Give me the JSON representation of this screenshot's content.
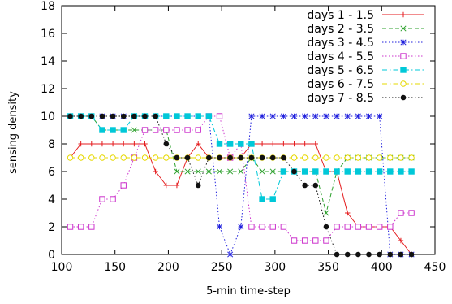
{
  "chart_data": {
    "type": "line",
    "xlabel": "5-min time-step",
    "ylabel": "sensing density",
    "xlim": [
      100,
      450
    ],
    "ylim": [
      0,
      18
    ],
    "xticks": [
      100,
      150,
      200,
      250,
      300,
      350,
      400,
      450
    ],
    "yticks": [
      0,
      2,
      4,
      6,
      8,
      10,
      12,
      14,
      16,
      18
    ],
    "grid": false,
    "legend_position": "top-right",
    "series": [
      {
        "name": "days 1 - 1.5",
        "color": "#e41a1c",
        "dash": "solid",
        "marker": "plus",
        "x": [
          108,
          118,
          128,
          138,
          148,
          158,
          168,
          178,
          188,
          198,
          208,
          218,
          228,
          238,
          248,
          258,
          268,
          278,
          288,
          298,
          308,
          318,
          328,
          338,
          348,
          358,
          368,
          378,
          388,
          398,
          408,
          418,
          428
        ],
        "y": [
          7,
          8,
          8,
          8,
          8,
          8,
          8,
          8,
          6,
          5,
          5,
          7,
          8,
          7,
          7,
          7,
          7,
          8,
          8,
          8,
          8,
          8,
          8,
          8,
          6,
          6,
          3,
          2,
          2,
          2,
          2,
          1,
          0
        ]
      },
      {
        "name": "days 2 - 3.5",
        "color": "#2ca02c",
        "dash": "dashed",
        "marker": "x",
        "x": [
          108,
          118,
          128,
          138,
          148,
          158,
          168,
          178,
          188,
          198,
          208,
          218,
          228,
          238,
          248,
          258,
          268,
          278,
          288,
          298,
          308,
          318,
          328,
          338,
          348,
          358,
          368,
          378,
          388,
          398,
          408,
          418,
          428
        ],
        "y": [
          10,
          10,
          10,
          9,
          9,
          9,
          9,
          9,
          9,
          9,
          6,
          6,
          6,
          6,
          6,
          6,
          6,
          7,
          6,
          6,
          6,
          6,
          6,
          6,
          3,
          6,
          7,
          7,
          7,
          7,
          7,
          7,
          7
        ]
      },
      {
        "name": "days 3 - 4.5",
        "color": "#1f1fdd",
        "dash": "dotted",
        "marker": "star",
        "x": [
          108,
          118,
          128,
          138,
          148,
          158,
          168,
          178,
          188,
          198,
          208,
          218,
          228,
          238,
          248,
          258,
          268,
          278,
          288,
          298,
          308,
          318,
          328,
          338,
          348,
          358,
          368,
          378,
          388,
          398,
          408,
          418,
          428
        ],
        "y": [
          10,
          10,
          10,
          10,
          10,
          10,
          10,
          10,
          10,
          10,
          10,
          10,
          10,
          10,
          2,
          0,
          2,
          10,
          10,
          10,
          10,
          10,
          10,
          10,
          10,
          10,
          10,
          10,
          10,
          10,
          0,
          0,
          0
        ]
      },
      {
        "name": "days 4 - 5.5",
        "color": "#cc33cc",
        "dash": "dotted",
        "marker": "open-square",
        "x": [
          108,
          118,
          128,
          138,
          148,
          158,
          168,
          178,
          188,
          198,
          208,
          218,
          228,
          238,
          248,
          258,
          268,
          278,
          288,
          298,
          308,
          318,
          328,
          338,
          348,
          358,
          368,
          378,
          388,
          398,
          408,
          418,
          428
        ],
        "y": [
          2,
          2,
          2,
          4,
          4,
          5,
          7,
          9,
          9,
          9,
          9,
          9,
          9,
          10,
          10,
          7,
          8,
          2,
          2,
          2,
          2,
          1,
          1,
          1,
          1,
          2,
          2,
          2,
          2,
          2,
          2,
          3,
          3
        ]
      },
      {
        "name": "days 5 - 6.5",
        "color": "#00c8d8",
        "dash": "dash-dot",
        "marker": "filled-square",
        "x": [
          108,
          118,
          128,
          138,
          148,
          158,
          168,
          178,
          188,
          198,
          208,
          218,
          228,
          238,
          248,
          258,
          268,
          278,
          288,
          298,
          308,
          318,
          328,
          338,
          348,
          358,
          368,
          378,
          388,
          398,
          408,
          418,
          428
        ],
        "y": [
          10,
          10,
          10,
          9,
          9,
          9,
          10,
          10,
          10,
          10,
          10,
          10,
          10,
          10,
          8,
          8,
          8,
          8,
          4,
          4,
          6,
          6,
          6,
          6,
          6,
          6,
          6,
          6,
          6,
          6,
          6,
          6,
          6
        ]
      },
      {
        "name": "days 6 - 7.5",
        "color": "#e6d800",
        "dash": "dash-dot",
        "marker": "open-circle",
        "x": [
          108,
          118,
          128,
          138,
          148,
          158,
          168,
          178,
          188,
          198,
          208,
          218,
          228,
          238,
          248,
          258,
          268,
          278,
          288,
          298,
          308,
          318,
          328,
          338,
          348,
          358,
          368,
          378,
          388,
          398,
          408,
          418,
          428
        ],
        "y": [
          7,
          7,
          7,
          7,
          7,
          7,
          7,
          7,
          7,
          7,
          7,
          7,
          7,
          7,
          7,
          7,
          7,
          7,
          7,
          7,
          7,
          7,
          7,
          7,
          7,
          7,
          7,
          7,
          7,
          7,
          7,
          7,
          7
        ]
      },
      {
        "name": "days 7 - 8.5",
        "color": "#111111",
        "dash": "dotted",
        "marker": "filled-circle",
        "x": [
          108,
          118,
          128,
          138,
          148,
          158,
          168,
          178,
          188,
          198,
          208,
          218,
          228,
          238,
          248,
          258,
          268,
          278,
          288,
          298,
          308,
          318,
          328,
          338,
          348,
          358,
          368,
          378,
          388,
          398,
          408,
          418,
          428
        ],
        "y": [
          10,
          10,
          10,
          10,
          10,
          10,
          10,
          10,
          10,
          8,
          7,
          7,
          5,
          7,
          7,
          7,
          7,
          7,
          7,
          7,
          7,
          6,
          5,
          5,
          2,
          0,
          0,
          0,
          0,
          0,
          0,
          0,
          0
        ]
      }
    ]
  }
}
